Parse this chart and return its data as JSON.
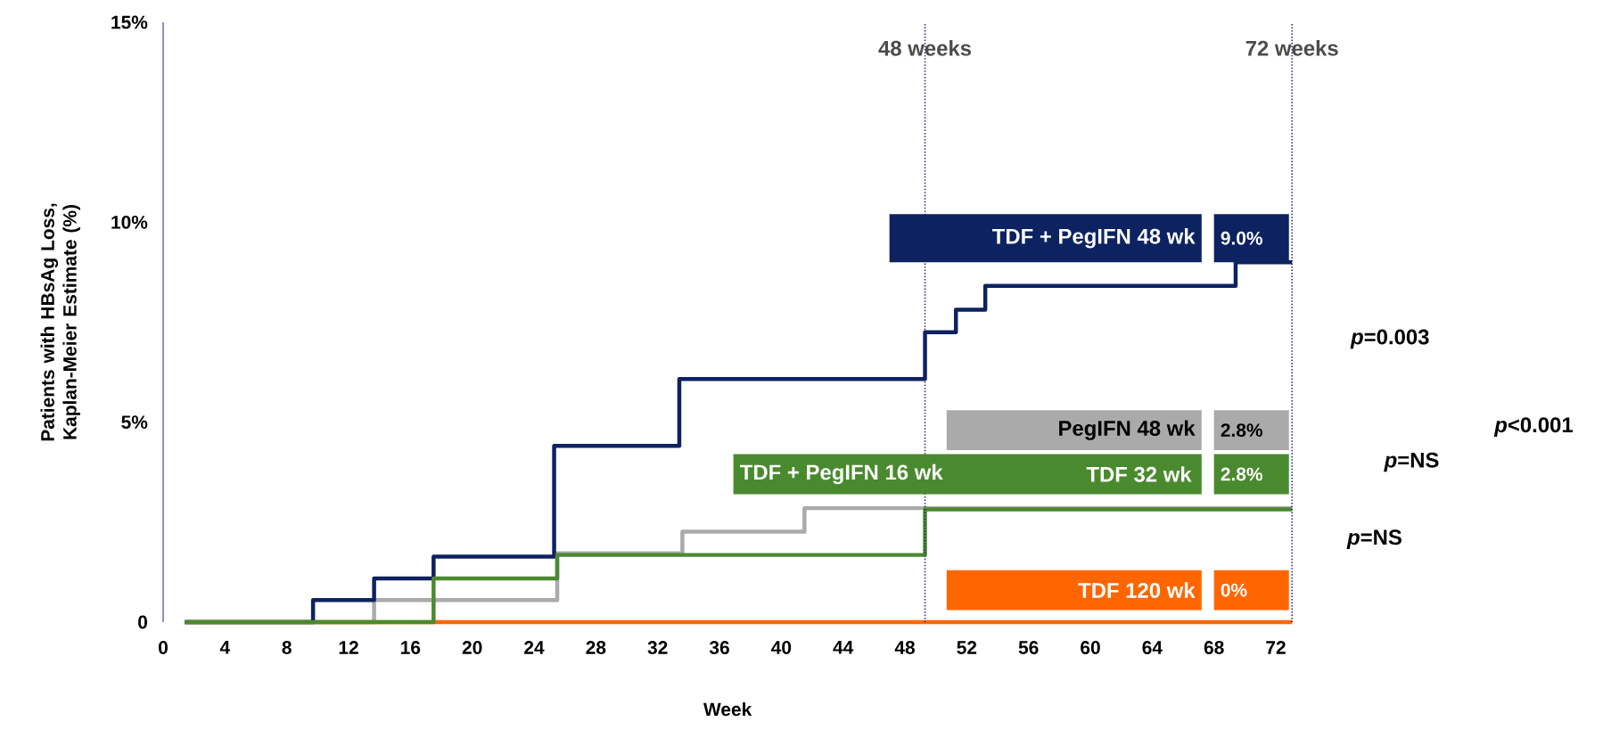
{
  "chart_data": {
    "type": "step",
    "xlabel": "Week",
    "ylabel": "Patients  with HBsAg Loss, Kaplan-Meier Estimate (%)",
    "xlim": [
      0,
      73.05
    ],
    "ylim": [
      0,
      15
    ],
    "xticks": [
      0,
      4,
      8,
      12,
      16,
      20,
      24,
      28,
      32,
      36,
      40,
      44,
      48,
      52,
      56,
      60,
      64,
      68,
      72
    ],
    "yticks": [
      0,
      {
        "value": 5,
        "label": "5%"
      },
      {
        "value": 10,
        "label": "10%"
      },
      {
        "value": 15,
        "label": "15%"
      }
    ],
    "series": [
      {
        "name": "PegIFN 48 wk",
        "color": "#aaaaaa",
        "x": [
          1.4,
          13.65,
          25.5,
          33.6,
          41.5,
          73.05
        ],
        "values": [
          0,
          0.55,
          1.72,
          2.26,
          2.85,
          2.85
        ]
      },
      {
        "name": "TDF 120 wk",
        "color": "#ff6600",
        "x": [
          1.4,
          73.05
        ],
        "values": [
          0,
          0
        ]
      },
      {
        "name": "TDF + PegIFN 48 wk",
        "color": "#0d2260",
        "x": [
          1.4,
          9.7,
          13.65,
          17.5,
          25.3,
          33.4,
          49.3,
          51.3,
          53.2,
          69.4,
          73.05
        ],
        "values": [
          0,
          0.55,
          1.09,
          1.64,
          4.41,
          6.08,
          7.25,
          7.81,
          8.41,
          9.0,
          9.0
        ]
      },
      {
        "name": "TDF + PegIFN 16 wk",
        "color": "#4a8a2e",
        "x": [
          1.4,
          17.5,
          25.5,
          49.3,
          73.05
        ],
        "values": [
          0,
          1.09,
          1.68,
          2.82,
          2.82
        ]
      }
    ],
    "ref_lines": [
      {
        "axis": "x",
        "value": 49.3,
        "label": "48 weeks",
        "color": "#1a237e",
        "line_style": "dotted"
      },
      {
        "axis": "x",
        "value": 73.05,
        "label": "72 weeks",
        "color": "#1a237e",
        "line_style": "dotted"
      }
    ],
    "annotations": [
      "*p*=0.003",
      "*p*<0.001",
      "*p*=NS",
      "*p*=NS",
      "TDF 32 wk",
      "2.8%",
      "0%",
      "9.0%",
      "2.8%"
    ],
    "legend": "right",
    "marker": "none",
    "line_style": "solid"
  }
}
